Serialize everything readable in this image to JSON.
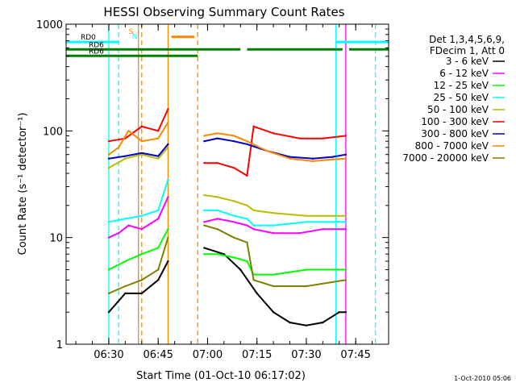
{
  "chart_data": {
    "type": "line",
    "title": "HESSI Observing Summary Count Rates",
    "xlabel": "Start Time (01-Oct-10 06:17:02)",
    "ylabel": "Count Rate (s⁻¹ detector⁻¹)",
    "yscale": "log",
    "ylim": [
      1,
      1000
    ],
    "xlim": [
      "06:17:02",
      "07:55:00"
    ],
    "x_ticks": [
      "06:30",
      "06:45",
      "07:00",
      "07:15",
      "07:30",
      "07:45"
    ],
    "y_ticks": [
      "1",
      "10",
      "100",
      "1000"
    ],
    "legend_header": [
      "Det 1,3,4,5,6,9,",
      "FDecim 1, Att 0"
    ],
    "legend_position": "right",
    "footer": "1-Oct-2010 05:06",
    "series": [
      {
        "name": "3 - 6 keV",
        "color": "#000000",
        "segments": [
          {
            "x": [
              "06:30",
              "06:35",
              "06:40",
              "06:45",
              "06:48"
            ],
            "y": [
              2,
              3,
              3,
              4,
              6
            ]
          },
          {
            "x": [
              "06:59",
              "07:05",
              "07:10",
              "07:15",
              "07:20",
              "07:25",
              "07:30",
              "07:35",
              "07:40",
              "07:42"
            ],
            "y": [
              8,
              7,
              5,
              3,
              2,
              1.6,
              1.5,
              1.6,
              2,
              2
            ]
          }
        ]
      },
      {
        "name": "6 - 12 keV",
        "color": "#ff00ff",
        "segments": [
          {
            "x": [
              "06:30",
              "06:33",
              "06:36",
              "06:40",
              "06:45",
              "06:48"
            ],
            "y": [
              10,
              11,
              13,
              12,
              15,
              24
            ]
          },
          {
            "x": [
              "06:59",
              "07:03",
              "07:08",
              "07:12",
              "07:14",
              "07:20",
              "07:28",
              "07:35",
              "07:42"
            ],
            "y": [
              14,
              15,
              14,
              13,
              12,
              11,
              11,
              12,
              12
            ]
          }
        ]
      },
      {
        "name": "12 - 25 keV",
        "color": "#00ff00",
        "segments": [
          {
            "x": [
              "06:30",
              "06:35",
              "06:40",
              "06:45",
              "06:48"
            ],
            "y": [
              5,
              6,
              7,
              8,
              12
            ]
          },
          {
            "x": [
              "06:59",
              "07:03",
              "07:08",
              "07:12",
              "07:14",
              "07:20",
              "07:30",
              "07:42"
            ],
            "y": [
              7,
              7,
              6.5,
              6,
              4.5,
              4.5,
              5,
              5
            ]
          }
        ]
      },
      {
        "name": "25 - 50 keV",
        "color": "#00ffff",
        "segments": [
          {
            "x": [
              "06:30",
              "06:35",
              "06:40",
              "06:45",
              "06:48"
            ],
            "y": [
              14,
              15,
              16,
              18,
              35
            ]
          },
          {
            "x": [
              "06:59",
              "07:03",
              "07:08",
              "07:12",
              "07:14",
              "07:20",
              "07:30",
              "07:42"
            ],
            "y": [
              18,
              18,
              16,
              15,
              13,
              13,
              14,
              14
            ]
          }
        ]
      },
      {
        "name": "50 - 100 keV",
        "color": "#bbbb00",
        "segments": [
          {
            "x": [
              "06:30",
              "06:35",
              "06:40",
              "06:45",
              "06:48"
            ],
            "y": [
              45,
              55,
              60,
              55,
              70
            ]
          },
          {
            "x": [
              "06:59",
              "07:03",
              "07:08",
              "07:12",
              "07:14",
              "07:20",
              "07:30",
              "07:42"
            ],
            "y": [
              25,
              24,
              22,
              20,
              18,
              17,
              16,
              16
            ]
          }
        ]
      },
      {
        "name": "100 - 300 keV",
        "color": "#ff0000",
        "segments": [
          {
            "x": [
              "06:30",
              "06:35",
              "06:40",
              "06:45",
              "06:48"
            ],
            "y": [
              80,
              85,
              110,
              100,
              160
            ]
          },
          {
            "x": [
              "06:59",
              "07:03",
              "07:08",
              "07:12",
              "07:14",
              "07:20",
              "07:28",
              "07:35",
              "07:42"
            ],
            "y": [
              50,
              50,
              45,
              38,
              110,
              95,
              85,
              85,
              90
            ]
          }
        ]
      },
      {
        "name": "300 - 800 keV",
        "color": "#0000cc",
        "segments": [
          {
            "x": [
              "06:30",
              "06:35",
              "06:40",
              "06:45",
              "06:48"
            ],
            "y": [
              55,
              58,
              62,
              58,
              75
            ]
          },
          {
            "x": [
              "06:59",
              "07:03",
              "07:08",
              "07:12",
              "07:18",
              "07:25",
              "07:32",
              "07:38",
              "07:42"
            ],
            "y": [
              80,
              85,
              80,
              75,
              65,
              57,
              55,
              57,
              60
            ]
          }
        ]
      },
      {
        "name": "800 - 7000 keV",
        "color": "#ff8800",
        "segments": [
          {
            "x": [
              "06:30",
              "06:33",
              "06:36",
              "06:40",
              "06:45",
              "06:48"
            ],
            "y": [
              60,
              70,
              100,
              80,
              85,
              120
            ]
          },
          {
            "x": [
              "06:59",
              "07:03",
              "07:08",
              "07:12",
              "07:18",
              "07:25",
              "07:32",
              "07:38",
              "07:42"
            ],
            "y": [
              90,
              95,
              90,
              80,
              65,
              55,
              52,
              54,
              55
            ]
          }
        ]
      },
      {
        "name": "7000 - 20000 keV",
        "color": "#7f7f00",
        "segments": [
          {
            "x": [
              "06:30",
              "06:35",
              "06:40",
              "06:45",
              "06:48"
            ],
            "y": [
              3,
              3.5,
              4,
              5,
              10
            ]
          },
          {
            "x": [
              "06:59",
              "07:03",
              "07:08",
              "07:12",
              "07:14",
              "07:20",
              "07:30",
              "07:42"
            ],
            "y": [
              13,
              12,
              10,
              9,
              4,
              3.5,
              3.5,
              4
            ]
          }
        ]
      }
    ],
    "state_bars": [
      {
        "label": "RD0",
        "color": "#00ffff",
        "y_value": 680,
        "segments": [
          [
            "06:17:02",
            "06:33"
          ],
          [
            "07:39",
            "07:55"
          ]
        ]
      },
      {
        "label": "RD6",
        "color": "#008000",
        "y_value": 580,
        "segments": [
          [
            "06:17:02",
            "06:57"
          ],
          [
            "06:57",
            "07:10"
          ],
          [
            "07:12",
            "07:41"
          ],
          [
            "07:43",
            "07:55"
          ]
        ]
      },
      {
        "label": "RD6",
        "color": "#008000",
        "y_value": 505,
        "segments": [
          [
            "06:17:02",
            "06:57"
          ]
        ]
      },
      {
        "label": "S",
        "color": "#ff8800",
        "y_value": 760,
        "segments": [
          [
            "06:49",
            "06:56"
          ]
        ]
      }
    ],
    "markers": [
      {
        "label": "S",
        "color": "#ff8800",
        "x": "06:39"
      },
      {
        "label": "N",
        "color": "#00ffff",
        "x": "06:40"
      }
    ],
    "vertical_lines": [
      {
        "x": "06:30",
        "color": "#00ffff",
        "style": "solid"
      },
      {
        "x": "06:33",
        "color": "#00ffff",
        "style": "dashed"
      },
      {
        "x": "06:39",
        "color": "#ff8800",
        "style": "solid"
      },
      {
        "x": "06:40",
        "color": "#ff8800",
        "style": "dashed"
      },
      {
        "x": "06:48",
        "color": "#ff8800",
        "style": "solid"
      },
      {
        "x": "06:57",
        "color": "#ff8800",
        "style": "dashed"
      },
      {
        "x": "07:39",
        "color": "#00ffff",
        "style": "solid"
      },
      {
        "x": "07:51",
        "color": "#00ffff",
        "style": "dashed"
      },
      {
        "x": "07:42",
        "color": "#ff00ff",
        "style": "solid"
      }
    ]
  }
}
